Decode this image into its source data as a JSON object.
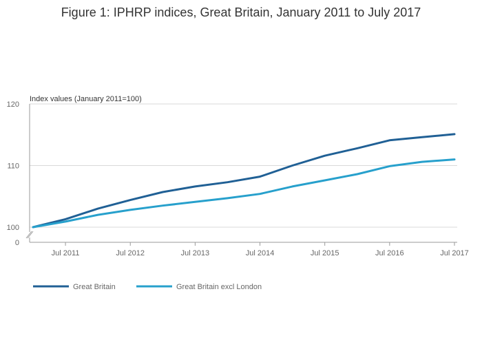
{
  "chart_data": {
    "type": "line",
    "title": "Figure 1: IPHRP indices, Great Britain, January 2011 to July 2017",
    "ylabel": "Index values (January 2011=100)",
    "xlabel": "",
    "ylim": [
      100,
      120
    ],
    "y_break_zero_label": "0",
    "y_ticks": [
      100,
      110,
      120
    ],
    "x_range": [
      "2011-01",
      "2017-07"
    ],
    "x_ticks": [
      {
        "date": "2011-07",
        "label": "Jul 2011"
      },
      {
        "date": "2012-07",
        "label": "Jul 2012"
      },
      {
        "date": "2013-07",
        "label": "Jul 2013"
      },
      {
        "date": "2014-07",
        "label": "Jul 2014"
      },
      {
        "date": "2015-07",
        "label": "Jul 2015"
      },
      {
        "date": "2016-07",
        "label": "Jul 2016"
      },
      {
        "date": "2017-07",
        "label": "Jul 2017"
      }
    ],
    "grid": true,
    "legend_position": "bottom-left",
    "series": [
      {
        "name": "Great Britain",
        "color": "#206095",
        "points": [
          [
            "2011-01",
            100.0
          ],
          [
            "2011-07",
            101.3
          ],
          [
            "2012-01",
            103.0
          ],
          [
            "2012-07",
            104.4
          ],
          [
            "2013-01",
            105.7
          ],
          [
            "2013-07",
            106.6
          ],
          [
            "2014-01",
            107.3
          ],
          [
            "2014-07",
            108.2
          ],
          [
            "2015-01",
            110.0
          ],
          [
            "2015-07",
            111.6
          ],
          [
            "2016-01",
            112.8
          ],
          [
            "2016-07",
            114.1
          ],
          [
            "2017-01",
            114.6
          ],
          [
            "2017-07",
            115.1
          ]
        ]
      },
      {
        "name": "Great Britain excl London",
        "color": "#27a0cc",
        "points": [
          [
            "2011-01",
            100.0
          ],
          [
            "2011-07",
            100.9
          ],
          [
            "2012-01",
            102.0
          ],
          [
            "2012-07",
            102.8
          ],
          [
            "2013-01",
            103.5
          ],
          [
            "2013-07",
            104.1
          ],
          [
            "2014-01",
            104.7
          ],
          [
            "2014-07",
            105.4
          ],
          [
            "2015-01",
            106.6
          ],
          [
            "2015-07",
            107.6
          ],
          [
            "2016-01",
            108.6
          ],
          [
            "2016-07",
            109.9
          ],
          [
            "2017-01",
            110.6
          ],
          [
            "2017-07",
            111.0
          ]
        ]
      }
    ]
  }
}
